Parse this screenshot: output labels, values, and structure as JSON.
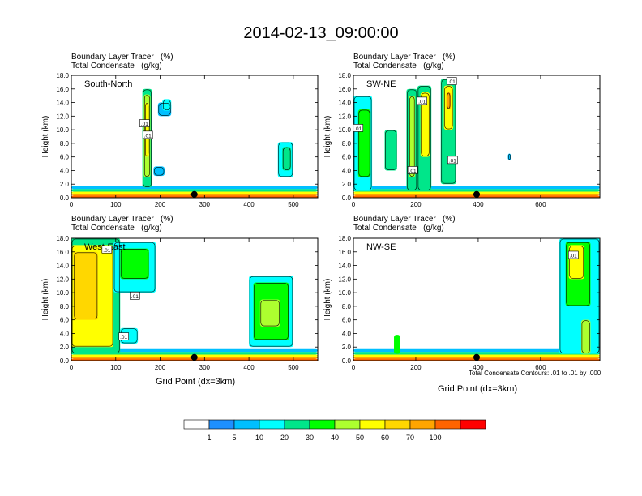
{
  "figure": {
    "title": "2014-02-13_09:00:00",
    "footnote": "Total Condensate Contours: .01 to .01 by .000",
    "x_axis_title": "Grid Point (dx=3km)"
  },
  "chart_data": [
    {
      "type": "heatmap",
      "panel": "South-North",
      "title_line1": "Boundary Layer Tracer   (%)",
      "title_line2": "Total Condensate   (g/kg)",
      "ylabel": "Height (km)",
      "xlim": [
        0,
        555
      ],
      "ylim": [
        0,
        18
      ],
      "xticks": [
        0,
        100,
        200,
        300,
        400,
        500
      ],
      "yticks": [
        "0.0",
        "2.0",
        "4.0",
        "6.0",
        "8.0",
        "10.0",
        "12.0",
        "14.0",
        "16.0",
        "18.0"
      ],
      "marker_x": 277,
      "contour_labels": [
        {
          "x": 165,
          "y": 10.9,
          "t": ".01"
        },
        {
          "x": 172,
          "y": 9.2,
          "t": ".01"
        }
      ],
      "features": [
        {
          "x0": 0,
          "x1": 555,
          "y0": 0,
          "y1": 0.3,
          "level": 100
        },
        {
          "x0": 0,
          "x1": 555,
          "y0": 0.3,
          "y1": 0.6,
          "level": 70
        },
        {
          "x0": 0,
          "x1": 555,
          "y0": 0.6,
          "y1": 0.9,
          "level": 50
        },
        {
          "x0": 0,
          "x1": 555,
          "y0": 0.9,
          "y1": 1.3,
          "level": 20
        },
        {
          "x0": 0,
          "x1": 555,
          "y0": 1.3,
          "y1": 1.7,
          "level": 5
        },
        {
          "x0": 160,
          "x1": 182,
          "y0": 1.5,
          "y1": 16.0,
          "level": 20
        },
        {
          "x0": 163,
          "x1": 178,
          "y0": 3,
          "y1": 15.2,
          "level": 40
        },
        {
          "x0": 165,
          "x1": 175,
          "y0": 6,
          "y1": 14,
          "level": 50
        },
        {
          "x0": 195,
          "x1": 225,
          "y0": 12,
          "y1": 14,
          "level": 5
        },
        {
          "x0": 205,
          "x1": 225,
          "y0": 12.8,
          "y1": 14.5,
          "level": 10
        },
        {
          "x0": 185,
          "x1": 210,
          "y0": 3.2,
          "y1": 4.6,
          "level": 5
        },
        {
          "x0": 465,
          "x1": 500,
          "y0": 3,
          "y1": 8.2,
          "level": 10
        },
        {
          "x0": 475,
          "x1": 495,
          "y0": 4,
          "y1": 7.5,
          "level": 20
        }
      ]
    },
    {
      "type": "heatmap",
      "panel": "SW-NE",
      "title_line1": "Boundary Layer Tracer   (%)",
      "title_line2": "Total Condensate   (g/kg)",
      "ylabel": "Height (km)",
      "xlim": [
        0,
        790
      ],
      "ylim": [
        0,
        18
      ],
      "xticks": [
        0,
        200,
        400,
        600
      ],
      "yticks": [
        "0.0",
        "2.0",
        "4.0",
        "6.0",
        "8.0",
        "10.0",
        "12.0",
        "14.0",
        "16.0",
        "18.0"
      ],
      "marker_x": 395,
      "contour_labels": [
        {
          "x": 15,
          "y": 10.2,
          "t": ".01"
        },
        {
          "x": 220,
          "y": 14.2,
          "t": ".01"
        },
        {
          "x": 190,
          "y": 4.0,
          "t": ".01"
        },
        {
          "x": 318,
          "y": 5.5,
          "t": ".01"
        },
        {
          "x": 315,
          "y": 17.1,
          "t": ".01"
        }
      ],
      "features": [
        {
          "x0": 0,
          "x1": 790,
          "y0": 0,
          "y1": 0.3,
          "level": 100
        },
        {
          "x0": 0,
          "x1": 790,
          "y0": 0.3,
          "y1": 0.6,
          "level": 70
        },
        {
          "x0": 0,
          "x1": 790,
          "y0": 0.6,
          "y1": 0.9,
          "level": 50
        },
        {
          "x0": 0,
          "x1": 790,
          "y0": 0.9,
          "y1": 1.3,
          "level": 20
        },
        {
          "x0": 0,
          "x1": 790,
          "y0": 1.3,
          "y1": 1.7,
          "level": 5
        },
        {
          "x0": 0,
          "x1": 60,
          "y0": 1,
          "y1": 15,
          "level": 10
        },
        {
          "x0": 15,
          "x1": 55,
          "y0": 3,
          "y1": 13,
          "level": 30
        },
        {
          "x0": 100,
          "x1": 140,
          "y0": 4,
          "y1": 10,
          "level": 20
        },
        {
          "x0": 170,
          "x1": 205,
          "y0": 1,
          "y1": 16,
          "level": 20
        },
        {
          "x0": 178,
          "x1": 198,
          "y0": 3,
          "y1": 15,
          "level": 40
        },
        {
          "x0": 205,
          "x1": 250,
          "y0": 1,
          "y1": 16.5,
          "level": 20
        },
        {
          "x0": 215,
          "x1": 245,
          "y0": 6,
          "y1": 15.5,
          "level": 50
        },
        {
          "x0": 280,
          "x1": 330,
          "y0": 2,
          "y1": 17.5,
          "level": 20
        },
        {
          "x0": 290,
          "x1": 320,
          "y0": 10,
          "y1": 16.5,
          "level": 50
        },
        {
          "x0": 298,
          "x1": 312,
          "y0": 13,
          "y1": 15.5,
          "level": 70
        },
        {
          "x0": 495,
          "x1": 505,
          "y0": 5.5,
          "y1": 6.5,
          "level": 5
        }
      ]
    },
    {
      "type": "heatmap",
      "panel": "West-East",
      "title_line1": "Boundary Layer Tracer   (%)",
      "title_line2": "Total Condensate   (g/kg)",
      "ylabel": "Height (km)",
      "xlim": [
        0,
        555
      ],
      "ylim": [
        0,
        18
      ],
      "xticks": [
        0,
        100,
        200,
        300,
        400,
        500
      ],
      "yticks": [
        "0.0",
        "2.0",
        "4.0",
        "6.0",
        "8.0",
        "10.0",
        "12.0",
        "14.0",
        "16.0",
        "18.0"
      ],
      "marker_x": 277,
      "contour_labels": [
        {
          "x": 80,
          "y": 16.3,
          "t": ".01"
        },
        {
          "x": 143,
          "y": 9.5,
          "t": ".01"
        },
        {
          "x": 118,
          "y": 3.5,
          "t": ".01"
        }
      ],
      "features": [
        {
          "x0": 0,
          "x1": 555,
          "y0": 0,
          "y1": 0.3,
          "level": 100
        },
        {
          "x0": 0,
          "x1": 555,
          "y0": 0.3,
          "y1": 0.6,
          "level": 70
        },
        {
          "x0": 0,
          "x1": 555,
          "y0": 0.6,
          "y1": 0.9,
          "level": 50
        },
        {
          "x0": 0,
          "x1": 555,
          "y0": 0.9,
          "y1": 1.3,
          "level": 20
        },
        {
          "x0": 0,
          "x1": 555,
          "y0": 1.3,
          "y1": 1.7,
          "level": 5
        },
        {
          "x0": 0,
          "x1": 110,
          "y0": 1,
          "y1": 18,
          "level": 20
        },
        {
          "x0": 0,
          "x1": 95,
          "y0": 2,
          "y1": 17,
          "level": 50
        },
        {
          "x0": 5,
          "x1": 60,
          "y0": 6,
          "y1": 16,
          "level": 60
        },
        {
          "x0": 95,
          "x1": 190,
          "y0": 10,
          "y1": 17.5,
          "level": 10
        },
        {
          "x0": 110,
          "x1": 175,
          "y0": 12,
          "y1": 16.5,
          "level": 30
        },
        {
          "x0": 110,
          "x1": 150,
          "y0": 2.5,
          "y1": 4.8,
          "level": 10
        },
        {
          "x0": 400,
          "x1": 500,
          "y0": 2,
          "y1": 12.5,
          "level": 10
        },
        {
          "x0": 410,
          "x1": 490,
          "y0": 3,
          "y1": 11.5,
          "level": 30
        },
        {
          "x0": 425,
          "x1": 470,
          "y0": 5,
          "y1": 9,
          "level": 40
        }
      ]
    },
    {
      "type": "heatmap",
      "panel": "NW-SE",
      "title_line1": "Boundary Layer Tracer   (%)",
      "title_line2": "Total Condensate   (g/kg)",
      "ylabel": "Height (km)",
      "xlim": [
        0,
        790
      ],
      "ylim": [
        0,
        18
      ],
      "xticks": [
        0,
        200,
        400,
        600
      ],
      "yticks": [
        "0.0",
        "2.0",
        "4.0",
        "6.0",
        "8.0",
        "10.0",
        "12.0",
        "14.0",
        "16.0",
        "18.0"
      ],
      "marker_x": 395,
      "contour_labels": [
        {
          "x": 705,
          "y": 15.5,
          "t": ".01"
        }
      ],
      "features": [
        {
          "x0": 0,
          "x1": 790,
          "y0": 0,
          "y1": 0.3,
          "level": 100
        },
        {
          "x0": 0,
          "x1": 790,
          "y0": 0.3,
          "y1": 0.6,
          "level": 70
        },
        {
          "x0": 0,
          "x1": 790,
          "y0": 0.6,
          "y1": 0.9,
          "level": 50
        },
        {
          "x0": 0,
          "x1": 790,
          "y0": 0.9,
          "y1": 1.3,
          "level": 20
        },
        {
          "x0": 0,
          "x1": 790,
          "y0": 1.3,
          "y1": 1.7,
          "level": 5
        },
        {
          "x0": 660,
          "x1": 790,
          "y0": 1,
          "y1": 18,
          "level": 10
        },
        {
          "x0": 680,
          "x1": 760,
          "y0": 8,
          "y1": 17.5,
          "level": 30
        },
        {
          "x0": 690,
          "x1": 740,
          "y0": 12,
          "y1": 17,
          "level": 50
        },
        {
          "x0": 730,
          "x1": 760,
          "y0": 1,
          "y1": 6,
          "level": 40
        },
        {
          "x0": 130,
          "x1": 150,
          "y0": 1,
          "y1": 3.8,
          "level": 30
        }
      ]
    }
  ],
  "colorbar": {
    "labels": [
      "1",
      "5",
      "10",
      "20",
      "30",
      "40",
      "50",
      "60",
      "70",
      "100"
    ],
    "colors": [
      "#ffffff",
      "#1e90ff",
      "#00bfff",
      "#00ffff",
      "#00e68a",
      "#00ff00",
      "#adff2f",
      "#ffff00",
      "#ffd700",
      "#ffa500",
      "#ff6400",
      "#ff0000"
    ]
  }
}
